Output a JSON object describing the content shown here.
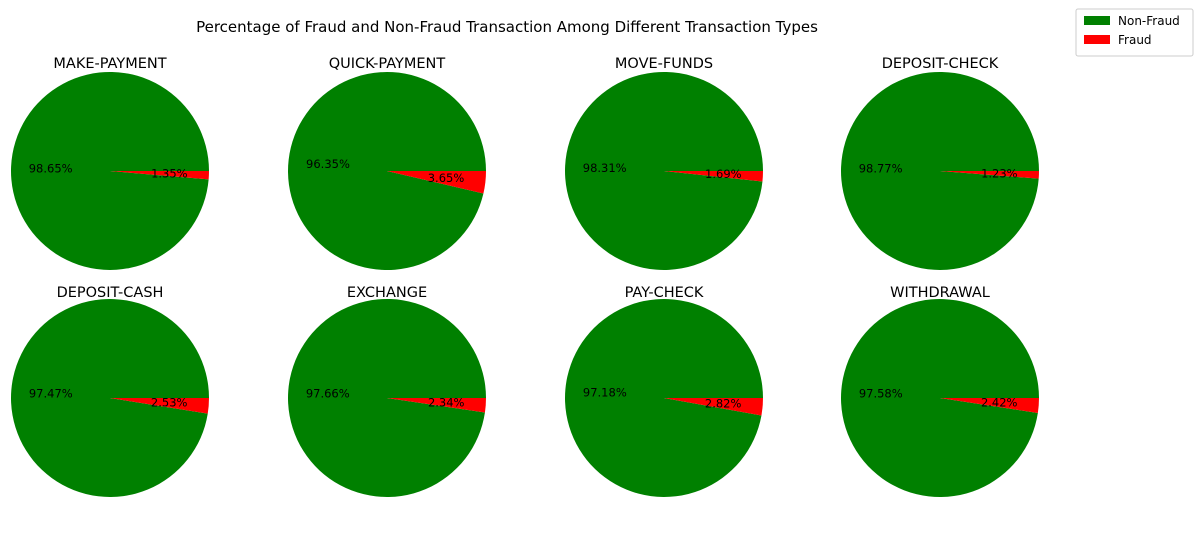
{
  "chart_data": {
    "type": "pie",
    "title": "Percentage of Fraud and Non-Fraud Transaction Among Different Transaction Types",
    "legend": {
      "position": "top-right",
      "entries": [
        {
          "name": "Non-Fraud",
          "color": "#008000"
        },
        {
          "name": "Fraud",
          "color": "#ff0000"
        }
      ]
    },
    "series_names": [
      "Non-Fraud",
      "Fraud"
    ],
    "colors": [
      "#008000",
      "#ff0000"
    ],
    "charts": [
      {
        "title": "MAKE-PAYMENT",
        "values": [
          98.65,
          1.35
        ],
        "labels": [
          "98.65%",
          "1.35%"
        ]
      },
      {
        "title": "QUICK-PAYMENT",
        "values": [
          96.35,
          3.65
        ],
        "labels": [
          "96.35%",
          "3.65%"
        ]
      },
      {
        "title": "MOVE-FUNDS",
        "values": [
          98.31,
          1.69
        ],
        "labels": [
          "98.31%",
          "1.69%"
        ]
      },
      {
        "title": "DEPOSIT-CHECK",
        "values": [
          98.77,
          1.23
        ],
        "labels": [
          "98.77%",
          "1.23%"
        ]
      },
      {
        "title": "DEPOSIT-CASH",
        "values": [
          97.47,
          2.53
        ],
        "labels": [
          "97.47%",
          "2.53%"
        ]
      },
      {
        "title": "EXCHANGE",
        "values": [
          97.66,
          2.34
        ],
        "labels": [
          "97.66%",
          "2.34%"
        ]
      },
      {
        "title": "PAY-CHECK",
        "values": [
          97.18,
          2.82
        ],
        "labels": [
          "97.18%",
          "2.82%"
        ]
      },
      {
        "title": "WITHDRAWAL",
        "values": [
          97.58,
          2.42
        ],
        "labels": [
          "97.58%",
          "2.42%"
        ]
      }
    ]
  }
}
